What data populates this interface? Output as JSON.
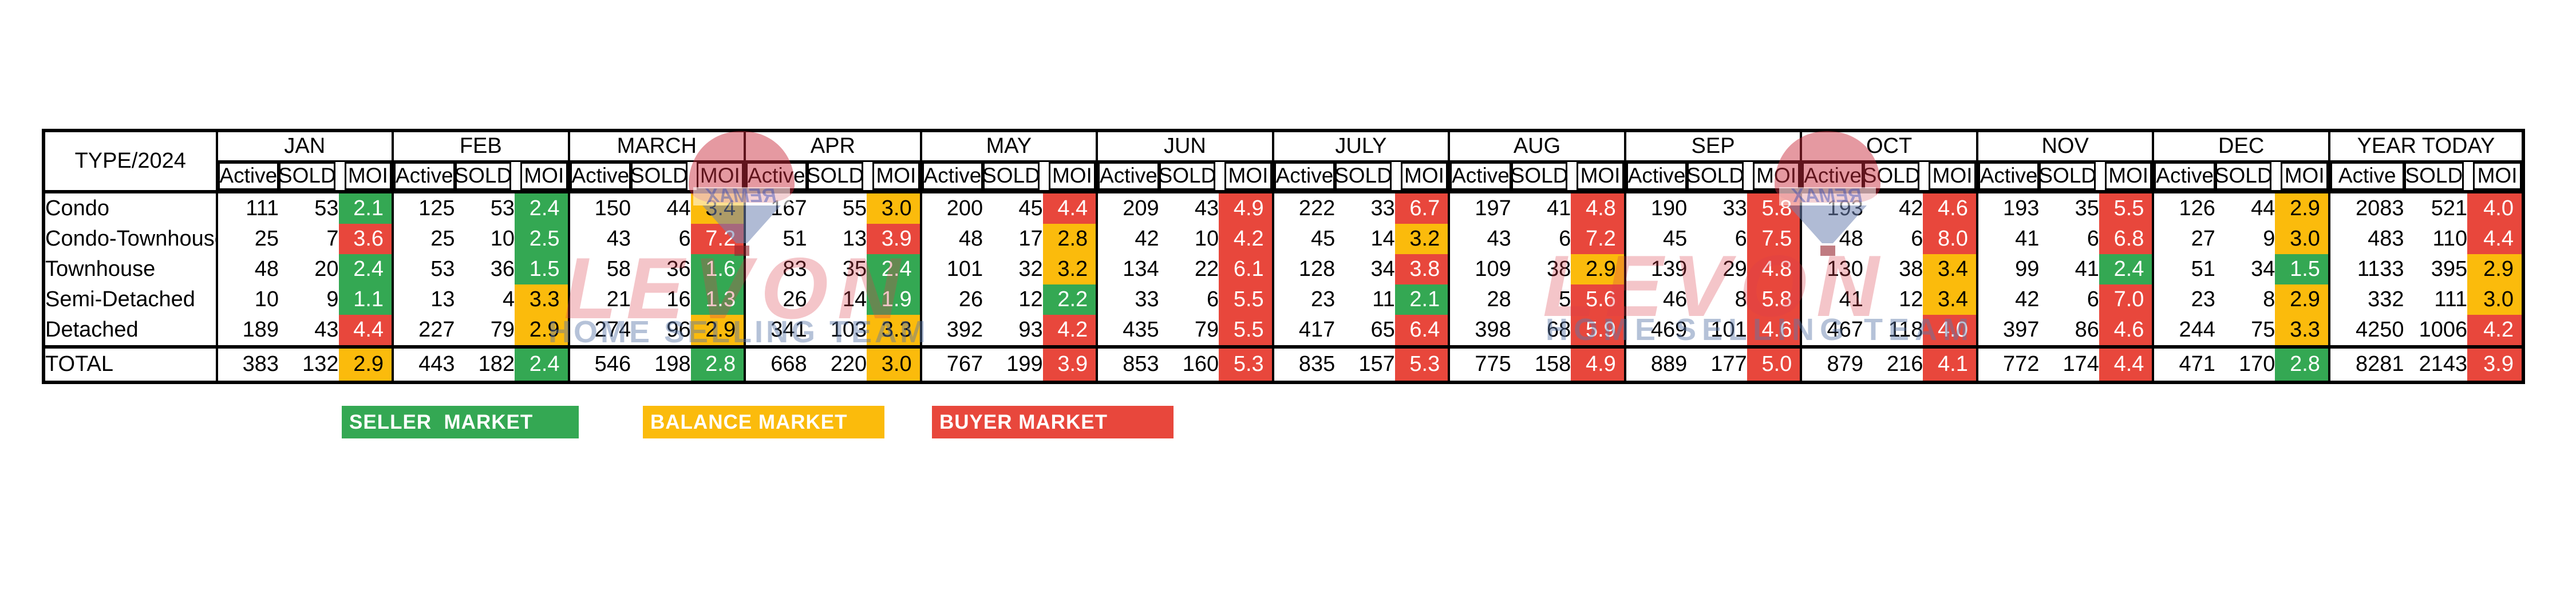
{
  "chart_data": {
    "type": "table",
    "title": "TYPE/2024",
    "metrics": [
      "Active",
      "SOLD",
      "MOI"
    ],
    "row_types": [
      "Condo",
      "Condo-Townhouse",
      "Townhouse",
      "Semi-Detached",
      "Detached"
    ],
    "total_label": "TOTAL",
    "months": [
      {
        "label": "JAN",
        "rows": [
          {
            "active": 111,
            "sold": 53,
            "moi": "2.1",
            "market": "green"
          },
          {
            "active": 25,
            "sold": 7,
            "moi": "3.6",
            "market": "red"
          },
          {
            "active": 48,
            "sold": 20,
            "moi": "2.4",
            "market": "green"
          },
          {
            "active": 10,
            "sold": 9,
            "moi": "1.1",
            "market": "green"
          },
          {
            "active": 189,
            "sold": 43,
            "moi": "4.4",
            "market": "red"
          }
        ],
        "total": {
          "active": 383,
          "sold": 132,
          "moi": "2.9",
          "market": "yellow"
        }
      },
      {
        "label": "FEB",
        "rows": [
          {
            "active": 125,
            "sold": 53,
            "moi": "2.4",
            "market": "green"
          },
          {
            "active": 25,
            "sold": 10,
            "moi": "2.5",
            "market": "green"
          },
          {
            "active": 53,
            "sold": 36,
            "moi": "1.5",
            "market": "green"
          },
          {
            "active": 13,
            "sold": 4,
            "moi": "3.3",
            "market": "yellow"
          },
          {
            "active": 227,
            "sold": 79,
            "moi": "2.9",
            "market": "yellow"
          }
        ],
        "total": {
          "active": 443,
          "sold": 182,
          "moi": "2.4",
          "market": "green"
        }
      },
      {
        "label": "MARCH",
        "rows": [
          {
            "active": 150,
            "sold": 44,
            "moi": "3.4",
            "market": "yellow"
          },
          {
            "active": 43,
            "sold": 6,
            "moi": "7.2",
            "market": "red"
          },
          {
            "active": 58,
            "sold": 36,
            "moi": "1.6",
            "market": "green"
          },
          {
            "active": 21,
            "sold": 16,
            "moi": "1.3",
            "market": "green"
          },
          {
            "active": 274,
            "sold": 96,
            "moi": "2.9",
            "market": "yellow"
          }
        ],
        "total": {
          "active": 546,
          "sold": 198,
          "moi": "2.8",
          "market": "green"
        }
      },
      {
        "label": "APR",
        "rows": [
          {
            "active": 167,
            "sold": 55,
            "moi": "3.0",
            "market": "yellow"
          },
          {
            "active": 51,
            "sold": 13,
            "moi": "3.9",
            "market": "red"
          },
          {
            "active": 83,
            "sold": 35,
            "moi": "2.4",
            "market": "green"
          },
          {
            "active": 26,
            "sold": 14,
            "moi": "1.9",
            "market": "green"
          },
          {
            "active": 341,
            "sold": 103,
            "moi": "3.3",
            "market": "yellow"
          }
        ],
        "total": {
          "active": 668,
          "sold": 220,
          "moi": "3.0",
          "market": "yellow"
        }
      },
      {
        "label": "MAY",
        "rows": [
          {
            "active": 200,
            "sold": 45,
            "moi": "4.4",
            "market": "red"
          },
          {
            "active": 48,
            "sold": 17,
            "moi": "2.8",
            "market": "yellow"
          },
          {
            "active": 101,
            "sold": 32,
            "moi": "3.2",
            "market": "yellow"
          },
          {
            "active": 26,
            "sold": 12,
            "moi": "2.2",
            "market": "green"
          },
          {
            "active": 392,
            "sold": 93,
            "moi": "4.2",
            "market": "red"
          }
        ],
        "total": {
          "active": 767,
          "sold": 199,
          "moi": "3.9",
          "market": "red"
        }
      },
      {
        "label": "JUN",
        "rows": [
          {
            "active": 209,
            "sold": 43,
            "moi": "4.9",
            "market": "red"
          },
          {
            "active": 42,
            "sold": 10,
            "moi": "4.2",
            "market": "red"
          },
          {
            "active": 134,
            "sold": 22,
            "moi": "6.1",
            "market": "red"
          },
          {
            "active": 33,
            "sold": 6,
            "moi": "5.5",
            "market": "red"
          },
          {
            "active": 435,
            "sold": 79,
            "moi": "5.5",
            "market": "red"
          }
        ],
        "total": {
          "active": 853,
          "sold": 160,
          "moi": "5.3",
          "market": "red"
        }
      },
      {
        "label": "JULY",
        "rows": [
          {
            "active": 222,
            "sold": 33,
            "moi": "6.7",
            "market": "red"
          },
          {
            "active": 45,
            "sold": 14,
            "moi": "3.2",
            "market": "yellow"
          },
          {
            "active": 128,
            "sold": 34,
            "moi": "3.8",
            "market": "red"
          },
          {
            "active": 23,
            "sold": 11,
            "moi": "2.1",
            "market": "green"
          },
          {
            "active": 417,
            "sold": 65,
            "moi": "6.4",
            "market": "red"
          }
        ],
        "total": {
          "active": 835,
          "sold": 157,
          "moi": "5.3",
          "market": "red"
        }
      },
      {
        "label": "AUG",
        "rows": [
          {
            "active": 197,
            "sold": 41,
            "moi": "4.8",
            "market": "red"
          },
          {
            "active": 43,
            "sold": 6,
            "moi": "7.2",
            "market": "red"
          },
          {
            "active": 109,
            "sold": 38,
            "moi": "2.9",
            "market": "yellow"
          },
          {
            "active": 28,
            "sold": 5,
            "moi": "5.6",
            "market": "red"
          },
          {
            "active": 398,
            "sold": 68,
            "moi": "5.9",
            "market": "red"
          }
        ],
        "total": {
          "active": 775,
          "sold": 158,
          "moi": "4.9",
          "market": "red"
        }
      },
      {
        "label": "SEP",
        "rows": [
          {
            "active": 190,
            "sold": 33,
            "moi": "5.8",
            "market": "red"
          },
          {
            "active": 45,
            "sold": 6,
            "moi": "7.5",
            "market": "red"
          },
          {
            "active": 139,
            "sold": 29,
            "moi": "4.8",
            "market": "red"
          },
          {
            "active": 46,
            "sold": 8,
            "moi": "5.8",
            "market": "red"
          },
          {
            "active": 469,
            "sold": 101,
            "moi": "4.6",
            "market": "red"
          }
        ],
        "total": {
          "active": 889,
          "sold": 177,
          "moi": "5.0",
          "market": "red"
        }
      },
      {
        "label": "OCT",
        "rows": [
          {
            "active": 193,
            "sold": 42,
            "moi": "4.6",
            "market": "red"
          },
          {
            "active": 48,
            "sold": 6,
            "moi": "8.0",
            "market": "red"
          },
          {
            "active": 130,
            "sold": 38,
            "moi": "3.4",
            "market": "yellow"
          },
          {
            "active": 41,
            "sold": 12,
            "moi": "3.4",
            "market": "yellow"
          },
          {
            "active": 467,
            "sold": 118,
            "moi": "4.0",
            "market": "red"
          }
        ],
        "total": {
          "active": 879,
          "sold": 216,
          "moi": "4.1",
          "market": "red"
        }
      },
      {
        "label": "NOV",
        "rows": [
          {
            "active": 193,
            "sold": 35,
            "moi": "5.5",
            "market": "red"
          },
          {
            "active": 41,
            "sold": 6,
            "moi": "6.8",
            "market": "red"
          },
          {
            "active": 99,
            "sold": 41,
            "moi": "2.4",
            "market": "green"
          },
          {
            "active": 42,
            "sold": 6,
            "moi": "7.0",
            "market": "red"
          },
          {
            "active": 397,
            "sold": 86,
            "moi": "4.6",
            "market": "red"
          }
        ],
        "total": {
          "active": 772,
          "sold": 174,
          "moi": "4.4",
          "market": "red"
        }
      },
      {
        "label": "DEC",
        "rows": [
          {
            "active": 126,
            "sold": 44,
            "moi": "2.9",
            "market": "yellow"
          },
          {
            "active": 27,
            "sold": 9,
            "moi": "3.0",
            "market": "yellow"
          },
          {
            "active": 51,
            "sold": 34,
            "moi": "1.5",
            "market": "green"
          },
          {
            "active": 23,
            "sold": 8,
            "moi": "2.9",
            "market": "yellow"
          },
          {
            "active": 244,
            "sold": 75,
            "moi": "3.3",
            "market": "yellow"
          }
        ],
        "total": {
          "active": 471,
          "sold": 170,
          "moi": "2.8",
          "market": "green"
        }
      },
      {
        "label": "YEAR TODAY",
        "rows": [
          {
            "active": 2083,
            "sold": 521,
            "moi": "4.0",
            "market": "red"
          },
          {
            "active": 483,
            "sold": 110,
            "moi": "4.4",
            "market": "red"
          },
          {
            "active": 1133,
            "sold": 395,
            "moi": "2.9",
            "market": "yellow"
          },
          {
            "active": 332,
            "sold": 111,
            "moi": "3.0",
            "market": "yellow"
          },
          {
            "active": 4250,
            "sold": 1006,
            "moi": "4.2",
            "market": "red"
          }
        ],
        "total": {
          "active": 8281,
          "sold": 2143,
          "moi": "3.9",
          "market": "red"
        }
      }
    ],
    "layout": {
      "grid": "off",
      "legend_position": "bottom-left"
    }
  },
  "legend": {
    "seller": {
      "label": "SELLER  MARKET",
      "color": "#34A853"
    },
    "balance": {
      "label": "BALANCE MARKET",
      "color": "#FBBB0C"
    },
    "buyer": {
      "label": "BUYER MARKET",
      "color": "#E8473C"
    }
  },
  "colors": {
    "green": "#34A853",
    "yellow": "#FBBB0C",
    "red": "#E8473C",
    "border": "#000000"
  },
  "watermark": {
    "brand": "LEVON",
    "tagline": "HOME SELLING TEAM",
    "balloon_text": "REMAX"
  }
}
